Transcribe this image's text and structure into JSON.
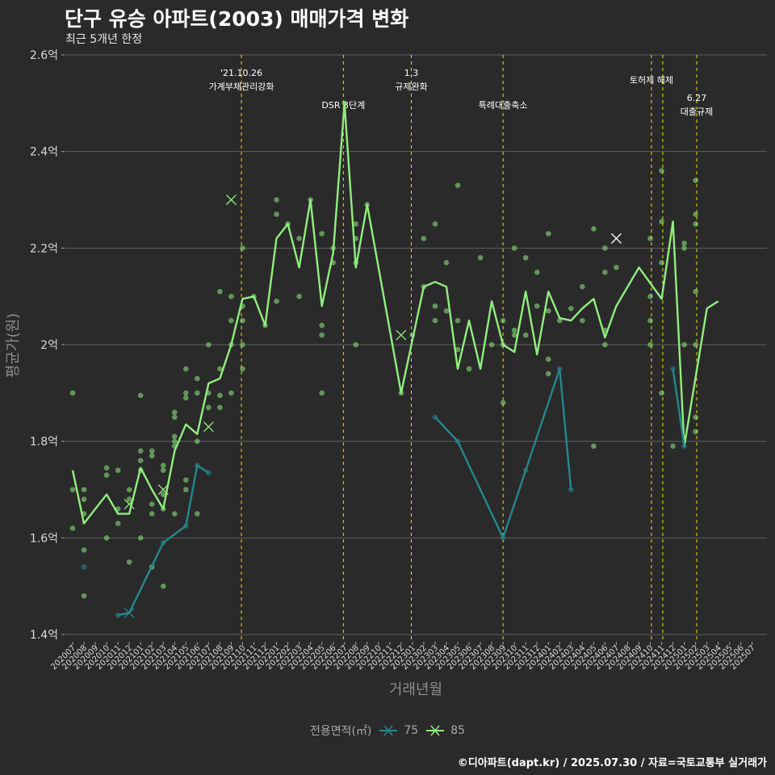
{
  "title": "단구 유승 아파트(2003) 매매가격 변화",
  "subtitle": "최근 5개년 한정",
  "caption": "©디아파트(dapt.kr) / 2025.07.30 / 자료=국토교통부 실거래가",
  "legend": {
    "title": "전용면적(㎡)"
  },
  "colors": {
    "bg": "#2b2a2b",
    "grid": "#5e5e5e",
    "series75": "#23888e",
    "series85": "#90ee7e",
    "event_line": "#e6e600",
    "axis_text": "#d9d9d9",
    "axis_title": "#8c8c8c"
  },
  "chart_data": {
    "type": "line",
    "title": "단구 유승 아파트(2003) 매매가격 변화",
    "xlabel": "거래년월",
    "ylabel": "평균가(원)",
    "ylim": [
      1.4,
      2.6
    ],
    "y_unit": "억",
    "y_ticks": [
      "1.4억",
      "1.6억",
      "1.8억",
      "2억",
      "2.2억",
      "2.4억",
      "2.6억"
    ],
    "grid": true,
    "legend_position": "bottom",
    "x_labels": [
      "202007",
      "202008",
      "202009",
      "202010",
      "202011",
      "202012",
      "202101",
      "202102",
      "202103",
      "202104",
      "202105",
      "202106",
      "202107",
      "202108",
      "202109",
      "202110",
      "202111",
      "202112",
      "202201",
      "202202",
      "202203",
      "202204",
      "202205",
      "202206",
      "202207",
      "202208",
      "202209",
      "202210",
      "202211",
      "202212",
      "202301",
      "202302",
      "202303",
      "202304",
      "202305",
      "202306",
      "202307",
      "202308",
      "202309",
      "202310",
      "202311",
      "202312",
      "202401",
      "202402",
      "202403",
      "202404",
      "202405",
      "202406",
      "202407",
      "202408",
      "202409",
      "202410",
      "202411",
      "202412",
      "202501",
      "202502",
      "202503",
      "202504",
      "202505",
      "202506",
      "202507"
    ],
    "series": [
      {
        "name": "75",
        "line": [
          [
            4,
            1.44
          ],
          [
            5,
            1.445
          ],
          [
            8,
            1.59
          ],
          [
            10,
            1.625
          ],
          [
            11,
            1.75
          ],
          [
            12,
            1.735
          ]
        ],
        "line2": [
          [
            32,
            1.85
          ],
          [
            34,
            1.8
          ],
          [
            38,
            1.6
          ],
          [
            40,
            1.74
          ],
          [
            43,
            1.95
          ],
          [
            44,
            1.7
          ]
        ],
        "line3": [
          [
            53,
            1.95
          ],
          [
            54,
            1.79
          ]
        ],
        "points": [
          [
            1,
            1.54
          ],
          [
            4,
            1.44
          ],
          [
            8,
            1.59
          ],
          [
            10,
            1.625
          ],
          [
            11,
            1.75
          ],
          [
            12,
            1.735
          ],
          [
            32,
            1.85
          ],
          [
            34,
            1.8
          ],
          [
            38,
            1.6
          ],
          [
            40,
            1.74
          ],
          [
            43,
            1.95
          ],
          [
            44,
            1.7
          ],
          [
            53,
            1.95
          ],
          [
            54,
            1.79
          ]
        ],
        "cancelled": [
          [
            5,
            1.445
          ]
        ]
      },
      {
        "name": "85",
        "line": [
          [
            0,
            1.74
          ],
          [
            1,
            1.63
          ],
          [
            3,
            1.69
          ],
          [
            4,
            1.65
          ],
          [
            5,
            1.65
          ],
          [
            6,
            1.745
          ],
          [
            7,
            1.7
          ],
          [
            8,
            1.66
          ],
          [
            9,
            1.78
          ],
          [
            10,
            1.835
          ],
          [
            11,
            1.815
          ],
          [
            12,
            1.92
          ],
          [
            13,
            1.93
          ],
          [
            14,
            2.0
          ],
          [
            15,
            2.095
          ],
          [
            16,
            2.1
          ],
          [
            17,
            2.04
          ],
          [
            18,
            2.22
          ],
          [
            19,
            2.25
          ],
          [
            20,
            2.16
          ],
          [
            21,
            2.3
          ],
          [
            22,
            2.08
          ],
          [
            23,
            2.19
          ],
          [
            24,
            2.5
          ],
          [
            25,
            2.16
          ],
          [
            26,
            2.29
          ],
          [
            29,
            1.9
          ],
          [
            31,
            2.12
          ],
          [
            32,
            2.13
          ],
          [
            33,
            2.12
          ],
          [
            34,
            1.95
          ],
          [
            35,
            2.05
          ],
          [
            36,
            1.95
          ],
          [
            37,
            2.09
          ],
          [
            38,
            2.0
          ],
          [
            39,
            1.985
          ],
          [
            40,
            2.11
          ],
          [
            41,
            1.98
          ],
          [
            42,
            2.11
          ],
          [
            43,
            2.055
          ],
          [
            44,
            2.05
          ],
          [
            45,
            2.075
          ],
          [
            46,
            2.095
          ],
          [
            47,
            2.015
          ],
          [
            48,
            2.08
          ],
          [
            50,
            2.16
          ],
          [
            52,
            2.095
          ],
          [
            53,
            2.255
          ],
          [
            54,
            1.79
          ],
          [
            56,
            2.075
          ],
          [
            57,
            2.09
          ]
        ],
        "points": [
          [
            0,
            1.9
          ],
          [
            0,
            1.7
          ],
          [
            0,
            1.62
          ],
          [
            1,
            1.7
          ],
          [
            1,
            1.68
          ],
          [
            1,
            1.65
          ],
          [
            1,
            1.575
          ],
          [
            1,
            1.48
          ],
          [
            3,
            1.745
          ],
          [
            3,
            1.73
          ],
          [
            3,
            1.6
          ],
          [
            4,
            1.74
          ],
          [
            4,
            1.66
          ],
          [
            4,
            1.63
          ],
          [
            5,
            1.7
          ],
          [
            5,
            1.68
          ],
          [
            5,
            1.55
          ],
          [
            6,
            1.895
          ],
          [
            6,
            1.78
          ],
          [
            6,
            1.76
          ],
          [
            6,
            1.74
          ],
          [
            6,
            1.6
          ],
          [
            7,
            1.78
          ],
          [
            7,
            1.77
          ],
          [
            7,
            1.67
          ],
          [
            7,
            1.65
          ],
          [
            7,
            1.54
          ],
          [
            8,
            1.75
          ],
          [
            8,
            1.74
          ],
          [
            8,
            1.69
          ],
          [
            8,
            1.66
          ],
          [
            8,
            1.5
          ],
          [
            9,
            1.86
          ],
          [
            9,
            1.85
          ],
          [
            9,
            1.81
          ],
          [
            9,
            1.8
          ],
          [
            9,
            1.79
          ],
          [
            9,
            1.65
          ],
          [
            10,
            1.95
          ],
          [
            10,
            1.9
          ],
          [
            10,
            1.89
          ],
          [
            10,
            1.72
          ],
          [
            10,
            1.7
          ],
          [
            11,
            1.93
          ],
          [
            11,
            1.9
          ],
          [
            11,
            1.8
          ],
          [
            11,
            1.65
          ],
          [
            12,
            2.0
          ],
          [
            12,
            1.9
          ],
          [
            12,
            1.87
          ],
          [
            13,
            2.11
          ],
          [
            13,
            1.95
          ],
          [
            13,
            1.895
          ],
          [
            13,
            1.87
          ],
          [
            14,
            2.1
          ],
          [
            14,
            2.05
          ],
          [
            14,
            2.0
          ],
          [
            14,
            1.9
          ],
          [
            15,
            2.2
          ],
          [
            15,
            2.08
          ],
          [
            15,
            2.05
          ],
          [
            15,
            2.0
          ],
          [
            15,
            1.95
          ],
          [
            16,
            2.1
          ],
          [
            17,
            2.04
          ],
          [
            18,
            2.3
          ],
          [
            18,
            2.27
          ],
          [
            18,
            2.09
          ],
          [
            19,
            2.25
          ],
          [
            20,
            2.22
          ],
          [
            20,
            2.1
          ],
          [
            21,
            2.3
          ],
          [
            22,
            2.23
          ],
          [
            22,
            2.04
          ],
          [
            22,
            2.02
          ],
          [
            22,
            1.9
          ],
          [
            23,
            2.2
          ],
          [
            23,
            2.17
          ],
          [
            24,
            2.5
          ],
          [
            25,
            2.25
          ],
          [
            25,
            2.22
          ],
          [
            25,
            2.17
          ],
          [
            25,
            2.0
          ],
          [
            26,
            2.29
          ],
          [
            29,
            1.9
          ],
          [
            30,
            2.02
          ],
          [
            31,
            2.22
          ],
          [
            31,
            2.12
          ],
          [
            32,
            2.25
          ],
          [
            32,
            2.08
          ],
          [
            32,
            2.05
          ],
          [
            33,
            2.17
          ],
          [
            33,
            2.07
          ],
          [
            34,
            2.33
          ],
          [
            34,
            2.05
          ],
          [
            34,
            1.99
          ],
          [
            35,
            1.95
          ],
          [
            36,
            2.18
          ],
          [
            37,
            2.0
          ],
          [
            38,
            2.0
          ],
          [
            38,
            1.88
          ],
          [
            38,
            2.05
          ],
          [
            39,
            2.2
          ],
          [
            39,
            2.03
          ],
          [
            39,
            2.02
          ],
          [
            40,
            2.18
          ],
          [
            40,
            2.02
          ],
          [
            41,
            2.15
          ],
          [
            41,
            2.08
          ],
          [
            42,
            2.23
          ],
          [
            42,
            2.07
          ],
          [
            42,
            1.97
          ],
          [
            42,
            1.94
          ],
          [
            43,
            2.05
          ],
          [
            44,
            2.075
          ],
          [
            45,
            2.12
          ],
          [
            45,
            2.05
          ],
          [
            46,
            2.24
          ],
          [
            46,
            1.79
          ],
          [
            47,
            2.2
          ],
          [
            47,
            2.15
          ],
          [
            47,
            2.03
          ],
          [
            47,
            2.0
          ],
          [
            48,
            2.16
          ],
          [
            51,
            2.22
          ],
          [
            51,
            2.1
          ],
          [
            51,
            2.05
          ],
          [
            51,
            2.0
          ],
          [
            52,
            2.36
          ],
          [
            52,
            2.255
          ],
          [
            52,
            2.17
          ],
          [
            52,
            1.9
          ],
          [
            53,
            1.79
          ],
          [
            54,
            2.21
          ],
          [
            54,
            2.2
          ],
          [
            54,
            2.0
          ],
          [
            55,
            2.34
          ],
          [
            55,
            2.27
          ],
          [
            55,
            2.25
          ],
          [
            55,
            2.11
          ],
          [
            55,
            2.0
          ],
          [
            55,
            1.85
          ],
          [
            55,
            1.82
          ]
        ],
        "cancelled": [
          [
            5,
            1.67
          ],
          [
            8,
            1.7
          ],
          [
            12,
            1.83
          ],
          [
            14,
            2.3
          ],
          [
            29,
            2.02
          ],
          [
            48,
            2.22
          ]
        ]
      }
    ],
    "events": [
      {
        "x": 14.9,
        "label": "'21.10.26\n가계부채관리강화",
        "row": 1
      },
      {
        "x": 23.9,
        "label": "DSR 3단계",
        "row": 2
      },
      {
        "x": 29.9,
        "label": "1.3\n규제완화",
        "row": 1
      },
      {
        "x": 38.0,
        "label": "특례대출축소",
        "row": 2
      },
      {
        "x": 51.1,
        "label": "토허제 해제",
        "row": 1
      },
      {
        "x": 52.1,
        "label": "",
        "row": 1
      },
      {
        "x": 55.1,
        "label": "6.27\n대출규제",
        "row": 3
      }
    ]
  }
}
